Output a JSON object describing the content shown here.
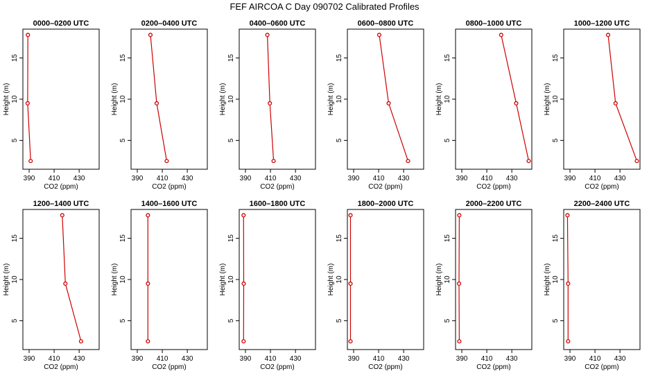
{
  "title": "FEF AIRCOA C  Day 090702  Calibrated Profiles",
  "colors": {
    "line": "#cc0000",
    "marker": "#cc0000",
    "axis": "#000000"
  },
  "chart_data": [
    {
      "type": "line",
      "title": "0000–0200 UTC",
      "xlabel": "CO2 (ppm)",
      "ylabel": "Height (m)",
      "xlim": [
        385,
        446
      ],
      "ylim": [
        1.5,
        18.5
      ],
      "xticks": [
        "390",
        "410",
        "430"
      ],
      "xtick_values": [
        390,
        410,
        430
      ],
      "yticks": [
        "5",
        "10",
        "15"
      ],
      "ytick_values": [
        5,
        10,
        15
      ],
      "x": [
        389.0,
        388.8,
        391.2
      ],
      "y": [
        17.8,
        9.5,
        2.5
      ]
    },
    {
      "type": "line",
      "title": "0200–0400 UTC",
      "xlabel": "CO2 (ppm)",
      "ylabel": "Height (m)",
      "xlim": [
        385,
        446
      ],
      "ylim": [
        1.5,
        18.5
      ],
      "xticks": [
        "390",
        "410",
        "430"
      ],
      "xtick_values": [
        390,
        410,
        430
      ],
      "yticks": [
        "5",
        "10",
        "15"
      ],
      "ytick_values": [
        5,
        10,
        15
      ],
      "x": [
        400.5,
        405.5,
        413.5
      ],
      "y": [
        17.8,
        9.5,
        2.5
      ]
    },
    {
      "type": "line",
      "title": "0400–0600 UTC",
      "xlabel": "CO2 (ppm)",
      "ylabel": "Height (m)",
      "xlim": [
        385,
        446
      ],
      "ylim": [
        1.5,
        18.5
      ],
      "xticks": [
        "390",
        "410",
        "430"
      ],
      "xtick_values": [
        390,
        410,
        430
      ],
      "yticks": [
        "5",
        "10",
        "15"
      ],
      "ytick_values": [
        5,
        10,
        15
      ],
      "x": [
        407.5,
        409.5,
        412.5
      ],
      "y": [
        17.8,
        9.5,
        2.5
      ]
    },
    {
      "type": "line",
      "title": "0600–0800 UTC",
      "xlabel": "CO2 (ppm)",
      "ylabel": "Height (m)",
      "xlim": [
        385,
        446
      ],
      "ylim": [
        1.5,
        18.5
      ],
      "xticks": [
        "390",
        "410",
        "430"
      ],
      "xtick_values": [
        390,
        410,
        430
      ],
      "yticks": [
        "5",
        "10",
        "15"
      ],
      "ytick_values": [
        5,
        10,
        15
      ],
      "x": [
        410.5,
        418.0,
        433.5
      ],
      "y": [
        17.8,
        9.5,
        2.5
      ]
    },
    {
      "type": "line",
      "title": "0800–1000 UTC",
      "xlabel": "CO2 (ppm)",
      "ylabel": "Height (m)",
      "xlim": [
        385,
        446
      ],
      "ylim": [
        1.5,
        18.5
      ],
      "xticks": [
        "390",
        "410",
        "430"
      ],
      "xtick_values": [
        390,
        410,
        430
      ],
      "yticks": [
        "5",
        "10",
        "15"
      ],
      "ytick_values": [
        5,
        10,
        15
      ],
      "x": [
        421.5,
        433.5,
        443.5
      ],
      "y": [
        17.8,
        9.5,
        2.5
      ]
    },
    {
      "type": "line",
      "title": "1000–1200 UTC",
      "xlabel": "CO2 (ppm)",
      "ylabel": "Height (m)",
      "xlim": [
        385,
        446
      ],
      "ylim": [
        1.5,
        18.5
      ],
      "xticks": [
        "390",
        "410",
        "430"
      ],
      "xtick_values": [
        390,
        410,
        430
      ],
      "yticks": [
        "5",
        "10",
        "15"
      ],
      "ytick_values": [
        5,
        10,
        15
      ],
      "x": [
        420.5,
        426.5,
        443.5
      ],
      "y": [
        17.8,
        9.5,
        2.5
      ]
    },
    {
      "type": "line",
      "title": "1200–1400 UTC",
      "xlabel": "CO2 (ppm)",
      "ylabel": "Height (m)",
      "xlim": [
        385,
        446
      ],
      "ylim": [
        1.5,
        18.5
      ],
      "xticks": [
        "390",
        "410",
        "430"
      ],
      "xtick_values": [
        390,
        410,
        430
      ],
      "yticks": [
        "5",
        "10",
        "15"
      ],
      "ytick_values": [
        5,
        10,
        15
      ],
      "x": [
        416.5,
        419.0,
        431.5
      ],
      "y": [
        17.8,
        9.5,
        2.5
      ]
    },
    {
      "type": "line",
      "title": "1400–1600 UTC",
      "xlabel": "CO2 (ppm)",
      "ylabel": "Height (m)",
      "xlim": [
        385,
        446
      ],
      "ylim": [
        1.5,
        18.5
      ],
      "xticks": [
        "390",
        "410",
        "430"
      ],
      "xtick_values": [
        390,
        410,
        430
      ],
      "yticks": [
        "5",
        "10",
        "15"
      ],
      "ytick_values": [
        5,
        10,
        15
      ],
      "x": [
        398.5,
        398.5,
        398.5
      ],
      "y": [
        17.8,
        9.5,
        2.5
      ]
    },
    {
      "type": "line",
      "title": "1600–1800 UTC",
      "xlabel": "CO2 (ppm)",
      "ylabel": "Height (m)",
      "xlim": [
        385,
        446
      ],
      "ylim": [
        1.5,
        18.5
      ],
      "xticks": [
        "390",
        "410",
        "430"
      ],
      "xtick_values": [
        390,
        410,
        430
      ],
      "yticks": [
        "5",
        "10",
        "15"
      ],
      "ytick_values": [
        5,
        10,
        15
      ],
      "x": [
        388.5,
        388.6,
        388.5
      ],
      "y": [
        17.8,
        9.5,
        2.5
      ]
    },
    {
      "type": "line",
      "title": "1800–2000 UTC",
      "xlabel": "CO2 (ppm)",
      "ylabel": "Height (m)",
      "xlim": [
        385,
        446
      ],
      "ylim": [
        1.5,
        18.5
      ],
      "xticks": [
        "390",
        "410",
        "430"
      ],
      "xtick_values": [
        390,
        410,
        430
      ],
      "yticks": [
        "5",
        "10",
        "15"
      ],
      "ytick_values": [
        5,
        10,
        15
      ],
      "x": [
        387.5,
        387.5,
        387.5
      ],
      "y": [
        17.8,
        9.5,
        2.5
      ]
    },
    {
      "type": "line",
      "title": "2000–2200 UTC",
      "xlabel": "CO2 (ppm)",
      "ylabel": "Height (m)",
      "xlim": [
        385,
        446
      ],
      "ylim": [
        1.5,
        18.5
      ],
      "xticks": [
        "390",
        "410",
        "430"
      ],
      "xtick_values": [
        390,
        410,
        430
      ],
      "yticks": [
        "5",
        "10",
        "15"
      ],
      "ytick_values": [
        5,
        10,
        15
      ],
      "x": [
        388.0,
        387.8,
        388.0
      ],
      "y": [
        17.8,
        9.5,
        2.5
      ]
    },
    {
      "type": "line",
      "title": "2200–2400 UTC",
      "xlabel": "CO2 (ppm)",
      "ylabel": "Height (m)",
      "xlim": [
        385,
        446
      ],
      "ylim": [
        1.5,
        18.5
      ],
      "xticks": [
        "390",
        "410",
        "430"
      ],
      "xtick_values": [
        390,
        410,
        430
      ],
      "yticks": [
        "5",
        "10",
        "15"
      ],
      "ytick_values": [
        5,
        10,
        15
      ],
      "x": [
        388.0,
        388.5,
        388.5
      ],
      "y": [
        17.8,
        9.5,
        2.5
      ]
    }
  ]
}
